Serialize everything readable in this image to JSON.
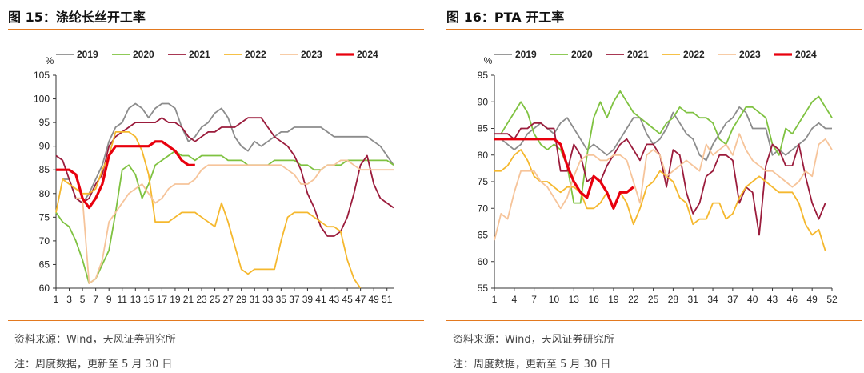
{
  "left": {
    "title": "图 15：涤纶长丝开工率",
    "source": "资料来源：Wind，天风证券研究所",
    "footnote": "注：周度数据，更新至 5 月 30 日"
  },
  "right": {
    "title": "图 16：PTA 开工率",
    "source": "资料来源：Wind，天风证券研究所",
    "footnote": "注：周度数据，更新至 5 月 30 日"
  },
  "colors": {
    "2019": "#8c8c8c",
    "2020": "#7fc241",
    "2021": "#9b1c3c",
    "2022": "#f5b82e",
    "2023": "#f6c49a",
    "2024": "#e8000d"
  },
  "chart_data": [
    {
      "type": "line",
      "title": "图 15：涤纶长丝开工率",
      "ylabel": "%",
      "xlabel": "",
      "ylim": [
        60,
        105
      ],
      "yticks": [
        60,
        65,
        70,
        75,
        80,
        85,
        90,
        95,
        100,
        105
      ],
      "xlim": [
        1,
        52
      ],
      "xticks": [
        1,
        3,
        5,
        7,
        9,
        11,
        13,
        15,
        17,
        19,
        21,
        23,
        25,
        27,
        29,
        31,
        33,
        35,
        37,
        39,
        41,
        43,
        45,
        47,
        49,
        51
      ],
      "legend_position": "top",
      "grid": false,
      "series": [
        {
          "name": "2019",
          "values": [
            null,
            83,
            83,
            79,
            78,
            80,
            83,
            86,
            91,
            94,
            95,
            98,
            99,
            98,
            96,
            98,
            99,
            99,
            98,
            94,
            91,
            92,
            94,
            95,
            97,
            98,
            96,
            92,
            90,
            89,
            91,
            90,
            91,
            92,
            93,
            93,
            94,
            94,
            94,
            94,
            94,
            93,
            92,
            92,
            92,
            92,
            92,
            92,
            91,
            90,
            88,
            86
          ]
        },
        {
          "name": "2020",
          "values": [
            76,
            74,
            73,
            70,
            66,
            61,
            62,
            65,
            68,
            76,
            85,
            86,
            84,
            79,
            82,
            86,
            87,
            88,
            89,
            88,
            88,
            87,
            88,
            88,
            88,
            88,
            87,
            87,
            87,
            86,
            86,
            86,
            86,
            87,
            87,
            87,
            87,
            86,
            86,
            85,
            85,
            86,
            86,
            86,
            87,
            87,
            87,
            87,
            87,
            87,
            87,
            86
          ]
        },
        {
          "name": "2021",
          "values": [
            88,
            87,
            83,
            79,
            78,
            79,
            82,
            84,
            90,
            92,
            93,
            94,
            95,
            95,
            95,
            95,
            96,
            95,
            95,
            94,
            92,
            91,
            92,
            93,
            93,
            94,
            94,
            94,
            95,
            96,
            96,
            96,
            94,
            92,
            91,
            90,
            88,
            85,
            80,
            77,
            73,
            71,
            71,
            72,
            75,
            80,
            86,
            88,
            82,
            79,
            78,
            77
          ]
        },
        {
          "name": "2022",
          "values": [
            76,
            83,
            82,
            81,
            80,
            80,
            81,
            85,
            88,
            93,
            93,
            93,
            92,
            89,
            84,
            74,
            74,
            74,
            75,
            76,
            76,
            76,
            75,
            74,
            73,
            78,
            74,
            69,
            64,
            63,
            64,
            64,
            64,
            64,
            70,
            75,
            76,
            76,
            76,
            75,
            74,
            73,
            73,
            72,
            66,
            62,
            60,
            null,
            null,
            null,
            null,
            null
          ]
        },
        {
          "name": "2023",
          "values": [
            null,
            null,
            null,
            79,
            79,
            61,
            62,
            66,
            74,
            76,
            78,
            80,
            81,
            82,
            80,
            78,
            79,
            81,
            82,
            82,
            82,
            83,
            85,
            86,
            86,
            86,
            86,
            86,
            86,
            86,
            86,
            86,
            86,
            86,
            86,
            85,
            84,
            82,
            82,
            83,
            85,
            86,
            86,
            87,
            87,
            86,
            85,
            85,
            85,
            85,
            85,
            85
          ]
        },
        {
          "name": "2024",
          "values": [
            85,
            85,
            85,
            84,
            79,
            77,
            79,
            82,
            88,
            90,
            90,
            90,
            90,
            90,
            90,
            91,
            91,
            90,
            89,
            87,
            86,
            86,
            null,
            null,
            null,
            null,
            null,
            null,
            null,
            null,
            null,
            null,
            null,
            null,
            null,
            null,
            null,
            null,
            null,
            null,
            null,
            null,
            null,
            null,
            null,
            null,
            null,
            null,
            null,
            null,
            null,
            null
          ]
        }
      ]
    },
    {
      "type": "line",
      "title": "图 16：PTA 开工率",
      "ylabel": "%",
      "xlabel": "",
      "ylim": [
        55,
        95
      ],
      "yticks": [
        55,
        60,
        65,
        70,
        75,
        80,
        85,
        90,
        95
      ],
      "xlim": [
        1,
        52
      ],
      "xticks": [
        1,
        4,
        7,
        10,
        13,
        16,
        19,
        22,
        25,
        28,
        31,
        34,
        37,
        40,
        43,
        46,
        49,
        52
      ],
      "legend_position": "top",
      "grid": false,
      "series": [
        {
          "name": "2019",
          "values": [
            null,
            83,
            82,
            81,
            82,
            84,
            85,
            86,
            85,
            84,
            86,
            87,
            85,
            83,
            81,
            82,
            81,
            80,
            81,
            83,
            85,
            87,
            87,
            84,
            82,
            83,
            85,
            88,
            86,
            84,
            83,
            80,
            79,
            82,
            84,
            86,
            87,
            89,
            88,
            85,
            85,
            85,
            80,
            81,
            80,
            81,
            82,
            83,
            85,
            86,
            85,
            85
          ]
        },
        {
          "name": "2020",
          "values": [
            null,
            84,
            86,
            88,
            90,
            88,
            84,
            82,
            81,
            82,
            81,
            78,
            71,
            71,
            80,
            87,
            90,
            87,
            90,
            92,
            90,
            88,
            87,
            86,
            85,
            84,
            86,
            87,
            89,
            88,
            88,
            87,
            87,
            86,
            83,
            82,
            85,
            87,
            89,
            89,
            88,
            87,
            82,
            80,
            85,
            84,
            86,
            88,
            90,
            91,
            89,
            87
          ]
        },
        {
          "name": "2021",
          "values": [
            84,
            84,
            84,
            83,
            85,
            85,
            86,
            86,
            85,
            85,
            77,
            77,
            82,
            80,
            75,
            76,
            75,
            78,
            80,
            82,
            83,
            81,
            79,
            82,
            82,
            80,
            74,
            81,
            80,
            73,
            69,
            71,
            76,
            77,
            80,
            80,
            79,
            71,
            74,
            73,
            65,
            78,
            82,
            81,
            78,
            78,
            82,
            76,
            71,
            68,
            71,
            null
          ]
        },
        {
          "name": "2022",
          "values": [
            77,
            77,
            78,
            80,
            81,
            79,
            76,
            75,
            75,
            74,
            73,
            74,
            74,
            73,
            70,
            70,
            71,
            73,
            70,
            73,
            71,
            67,
            70,
            74,
            75,
            77,
            76,
            75,
            72,
            71,
            67,
            68,
            68,
            71,
            71,
            68,
            69,
            72,
            74,
            75,
            76,
            75,
            74,
            73,
            73,
            73,
            71,
            67,
            65,
            66,
            62,
            null
          ]
        },
        {
          "name": "2023",
          "values": [
            64,
            69,
            68,
            73,
            77,
            77,
            77,
            75,
            74,
            72,
            70,
            72,
            76,
            79,
            80,
            80,
            79,
            79,
            80,
            80,
            79,
            75,
            71,
            80,
            81,
            80,
            76,
            77,
            78,
            79,
            78,
            77,
            82,
            80,
            81,
            82,
            80,
            84,
            81,
            79,
            78,
            77,
            77,
            76,
            75,
            74,
            75,
            77,
            76,
            82,
            83,
            81
          ]
        },
        {
          "name": "2024",
          "values": [
            83,
            83,
            83,
            83,
            83,
            83,
            83,
            83,
            83,
            83,
            82,
            78,
            75,
            73,
            72,
            76,
            75,
            73,
            70,
            73,
            73,
            74,
            null,
            null,
            null,
            null,
            null,
            null,
            null,
            null,
            null,
            null,
            null,
            null,
            null,
            null,
            null,
            null,
            null,
            null,
            null,
            null,
            null,
            null,
            null,
            null,
            null,
            null,
            null,
            null,
            null,
            null
          ]
        }
      ]
    }
  ]
}
